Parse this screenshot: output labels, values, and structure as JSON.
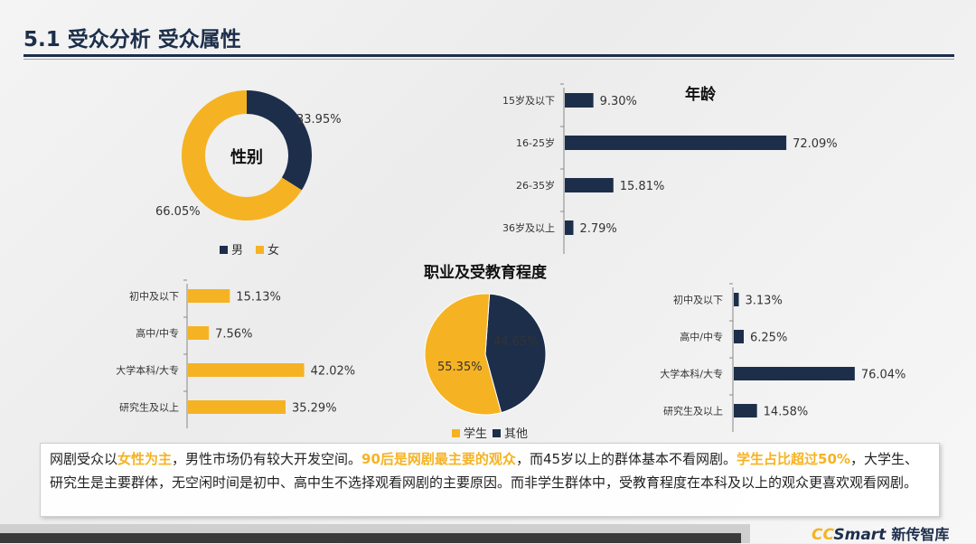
{
  "page_title": "5.1 受众分析  受众属性",
  "colors": {
    "navy": "#1c2e4a",
    "yellow": "#f5b323"
  },
  "chart_data": [
    {
      "type": "pie",
      "title": "性别",
      "slices": [
        {
          "name": "男",
          "value": 33.95,
          "label": "33.95%",
          "color": "#1c2e4a"
        },
        {
          "name": "女",
          "value": 66.05,
          "label": "66.05%",
          "color": "#f5b323"
        }
      ],
      "legend": "bottom"
    },
    {
      "type": "bar",
      "title": "年龄",
      "orientation": "horizontal",
      "categories": [
        "15岁及以下",
        "16-25岁",
        "26-35岁",
        "36岁及以上"
      ],
      "values": [
        9.3,
        72.09,
        15.81,
        2.79
      ],
      "labels": [
        "9.30%",
        "72.09%",
        "15.81%",
        "2.79%"
      ],
      "color": "#1c2e4a",
      "xlim": [
        0,
        80
      ]
    },
    {
      "type": "bar",
      "title": "",
      "orientation": "horizontal",
      "categories": [
        "初中及以下",
        "高中/中专",
        "大学本科/大专",
        "研究生及以上"
      ],
      "values": [
        15.13,
        7.56,
        42.02,
        35.29
      ],
      "labels": [
        "15.13%",
        "7.56%",
        "42.02%",
        "35.29%"
      ],
      "color": "#f5b323",
      "xlim": [
        0,
        80
      ]
    },
    {
      "type": "pie",
      "title": "职业及受教育程度",
      "slices": [
        {
          "name": "其他",
          "value": 44.65,
          "label": "44.65%",
          "color": "#1c2e4a"
        },
        {
          "name": "学生",
          "value": 55.35,
          "label": "55.35%",
          "color": "#f5b323"
        }
      ],
      "legend_order": [
        "学生",
        "其他"
      ],
      "legend": "bottom"
    },
    {
      "type": "bar",
      "title": "",
      "orientation": "horizontal",
      "categories": [
        "初中及以下",
        "高中/中专",
        "大学本科/大专",
        "研究生及以上"
      ],
      "values": [
        3.13,
        6.25,
        76.04,
        14.58
      ],
      "labels": [
        "3.13%",
        "6.25%",
        "76.04%",
        "14.58%"
      ],
      "color": "#1c2e4a",
      "xlim": [
        0,
        80
      ]
    }
  ],
  "summary": {
    "p1": "网剧受众以",
    "h1": "女性为主",
    "p2": "，男性市场仍有较大开发空间。",
    "h2": "90后是网剧最主要的观众",
    "p3": "，而45岁以上的群体基本不看网剧。",
    "h3": "学生占比超过50%",
    "p4": "，大学生、研究生是主要群体，无空闲时间是初中、高中生不选择观看网剧的主要原因。而非学生群体中，受教育程度在本科及以上的观众更喜欢观看网剧。"
  },
  "logo": {
    "cc": "CC",
    "smart": "Smart",
    "cn": "新传智库"
  }
}
